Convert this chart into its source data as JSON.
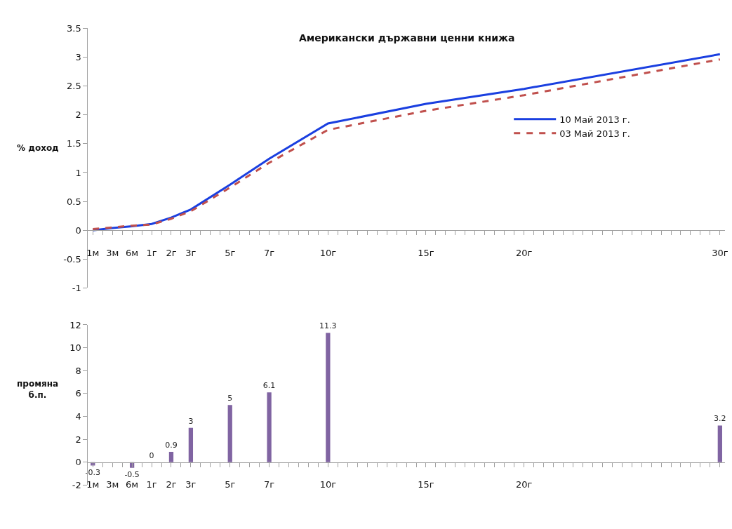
{
  "chart_data": [
    {
      "type": "line",
      "title": "Американски държавни ценни книжа",
      "ylabel": "% доход",
      "categories": [
        "1м",
        null,
        "3м",
        null,
        "6м",
        null,
        "1г",
        null,
        "2г",
        null,
        "3г",
        null,
        null,
        null,
        "5г",
        null,
        null,
        null,
        "7г",
        null,
        null,
        null,
        null,
        null,
        "10г",
        null,
        null,
        null,
        null,
        null,
        null,
        null,
        null,
        null,
        "15г",
        null,
        null,
        null,
        null,
        null,
        null,
        null,
        null,
        null,
        "20г",
        null,
        null,
        null,
        null,
        null,
        null,
        null,
        null,
        null,
        null,
        null,
        null,
        null,
        null,
        null,
        null,
        null,
        null,
        null,
        "30г"
      ],
      "series": [
        {
          "name": "10 Май 2013 г.",
          "color": "#1a3fe0",
          "line_style": "solid",
          "values": [
            0.0,
            null,
            0.04,
            null,
            0.07,
            null,
            0.11,
            null,
            0.22,
            null,
            0.36,
            null,
            null,
            null,
            0.79,
            null,
            null,
            null,
            1.24,
            null,
            null,
            null,
            null,
            null,
            1.85,
            null,
            null,
            null,
            null,
            null,
            null,
            null,
            null,
            null,
            2.19,
            null,
            null,
            null,
            null,
            null,
            null,
            null,
            null,
            null,
            2.45,
            null,
            null,
            null,
            null,
            null,
            null,
            null,
            null,
            null,
            null,
            null,
            null,
            null,
            null,
            null,
            null,
            null,
            null,
            null,
            3.05
          ]
        },
        {
          "name": "03 Май 2013 г.",
          "color": "#c0504d",
          "line_style": "dashed",
          "values": [
            0.02,
            null,
            0.05,
            null,
            0.08,
            null,
            0.1,
            null,
            0.2,
            null,
            0.33,
            null,
            null,
            null,
            0.74,
            null,
            null,
            null,
            1.17,
            null,
            null,
            null,
            null,
            null,
            1.74,
            null,
            null,
            null,
            null,
            null,
            null,
            null,
            null,
            null,
            2.07,
            null,
            null,
            null,
            null,
            null,
            null,
            null,
            null,
            null,
            2.34,
            null,
            null,
            null,
            null,
            null,
            null,
            null,
            null,
            null,
            null,
            null,
            null,
            null,
            null,
            null,
            null,
            null,
            null,
            null,
            2.96
          ]
        }
      ],
      "ylim": [
        -1,
        3.5
      ],
      "yticks": [
        -1,
        -0.5,
        0,
        0.5,
        1,
        1.5,
        2,
        2.5,
        3,
        3.5
      ],
      "legend": "right",
      "marker": "none"
    },
    {
      "type": "bar",
      "ylabel": "промяна\nб.п.",
      "categories": [
        "1м",
        null,
        "3м",
        null,
        "6м",
        null,
        "1г",
        null,
        "2г",
        null,
        "3г",
        null,
        null,
        null,
        "5г",
        null,
        null,
        null,
        "7г",
        null,
        null,
        null,
        null,
        null,
        "10г",
        null,
        null,
        null,
        null,
        null,
        null,
        null,
        null,
        null,
        "15г",
        null,
        null,
        null,
        null,
        null,
        null,
        null,
        null,
        null,
        "20г",
        null,
        null,
        null,
        null,
        null,
        null,
        null,
        null,
        null,
        null,
        null,
        null,
        null,
        null,
        null,
        null,
        null,
        null,
        null,
        null
      ],
      "values": [
        -0.3,
        null,
        null,
        null,
        -0.5,
        null,
        0,
        null,
        0.9,
        null,
        3,
        null,
        null,
        null,
        5,
        null,
        null,
        null,
        6.1,
        null,
        null,
        null,
        null,
        null,
        11.3,
        null,
        null,
        null,
        null,
        null,
        null,
        null,
        null,
        null,
        null,
        null,
        null,
        null,
        null,
        null,
        null,
        null,
        null,
        null,
        null,
        null,
        null,
        null,
        null,
        null,
        null,
        null,
        null,
        null,
        null,
        null,
        null,
        null,
        null,
        null,
        null,
        null,
        null,
        null,
        3.2
      ],
      "value_labels": [
        "-0.3",
        null,
        null,
        null,
        "-0.5",
        null,
        "0",
        null,
        "0.9",
        null,
        "3",
        null,
        null,
        null,
        "5",
        null,
        null,
        null,
        "6.1",
        null,
        null,
        null,
        null,
        null,
        "11.3",
        null,
        null,
        null,
        null,
        null,
        null,
        null,
        null,
        null,
        null,
        null,
        null,
        null,
        null,
        null,
        null,
        null,
        null,
        null,
        null,
        null,
        null,
        null,
        null,
        null,
        null,
        null,
        null,
        null,
        null,
        null,
        null,
        null,
        null,
        null,
        null,
        null,
        null,
        null,
        "3.2"
      ],
      "color": "#8064a2",
      "ylim": [
        -2,
        12
      ],
      "yticks": [
        -2,
        0,
        2,
        4,
        6,
        8,
        10,
        12
      ]
    }
  ]
}
